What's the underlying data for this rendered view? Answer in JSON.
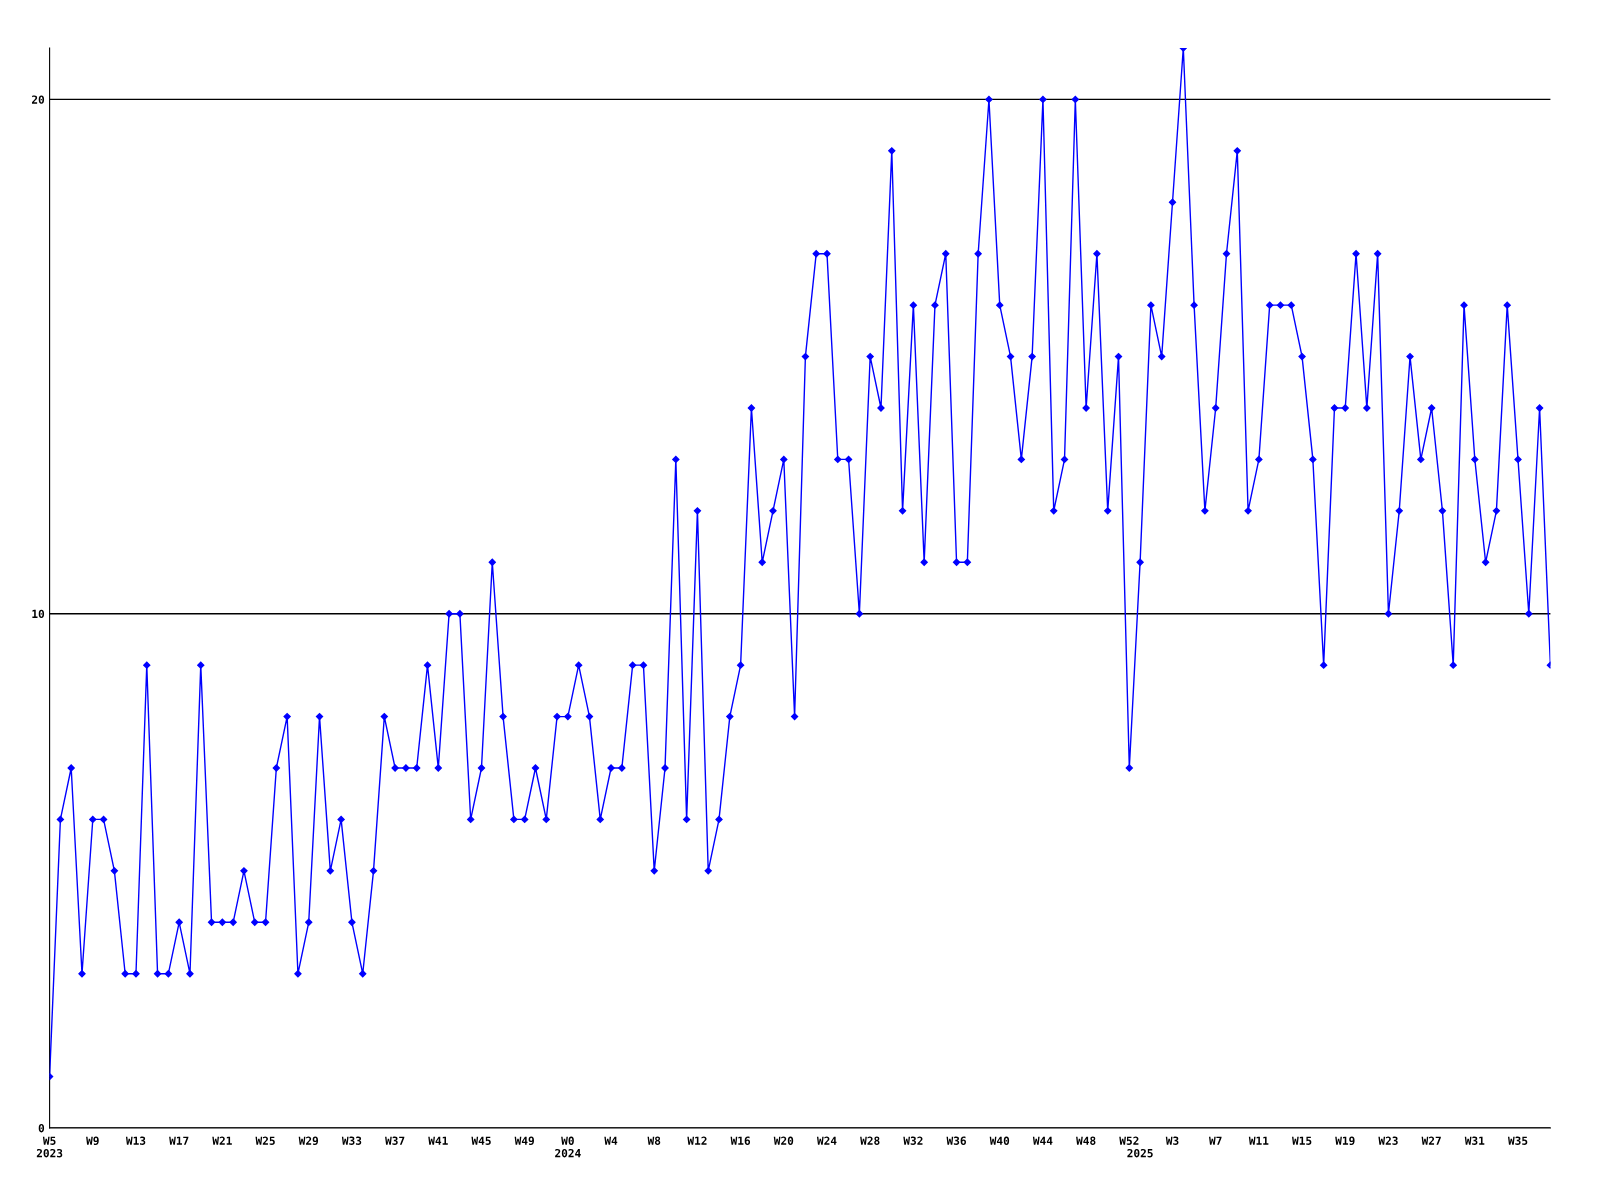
{
  "chart_data": {
    "type": "line",
    "categories": [
      "W5\n2023",
      null,
      null,
      null,
      "W9",
      null,
      null,
      null,
      "W13",
      null,
      null,
      null,
      "W17",
      null,
      null,
      null,
      "W21",
      null,
      null,
      null,
      "W25",
      null,
      null,
      null,
      "W29",
      null,
      null,
      null,
      "W33",
      null,
      null,
      null,
      "W37",
      null,
      null,
      null,
      "W41",
      null,
      null,
      null,
      "W45",
      null,
      null,
      null,
      "W49",
      null,
      null,
      null,
      "W0\n2024",
      null,
      null,
      null,
      "W4",
      null,
      null,
      null,
      "W8",
      null,
      null,
      null,
      "W12",
      null,
      null,
      null,
      "W16",
      null,
      null,
      null,
      "W20",
      null,
      null,
      null,
      "W24",
      null,
      null,
      null,
      "W28",
      null,
      null,
      null,
      "W32",
      null,
      null,
      null,
      "W36",
      null,
      null,
      null,
      "W40",
      null,
      null,
      null,
      "W44",
      null,
      null,
      null,
      "W48",
      null,
      null,
      null,
      "W52",
      "\n2025",
      null,
      null,
      "W3",
      null,
      null,
      null,
      "W7",
      null,
      null,
      null,
      "W11",
      null,
      null,
      null,
      "W15",
      null,
      null,
      null,
      "W19",
      null,
      null,
      null,
      "W23",
      null,
      null,
      null,
      "W27",
      null,
      null,
      null,
      "W31",
      null,
      null,
      null,
      "W35",
      null,
      null,
      null
    ],
    "series": [
      {
        "color": "#0000ff",
        "values": [
          1,
          6,
          7,
          3,
          6,
          6,
          5,
          3,
          3,
          9,
          3,
          3,
          4,
          3,
          9,
          4,
          4,
          4,
          5,
          4,
          4,
          7,
          8,
          3,
          4,
          8,
          5,
          6,
          4,
          3,
          5,
          8,
          7,
          7,
          7,
          9,
          7,
          10,
          10,
          6,
          7,
          11,
          8,
          6,
          6,
          7,
          6,
          8,
          8,
          9,
          8,
          6,
          7,
          7,
          9,
          9,
          5,
          7,
          13,
          6,
          12,
          5,
          6,
          8,
          9,
          14,
          11,
          12,
          13,
          8,
          15,
          17,
          17,
          13,
          13,
          10,
          15,
          14,
          19,
          12,
          16,
          11,
          16,
          17,
          11,
          11,
          17,
          20,
          16,
          15,
          13,
          15,
          20,
          12,
          13,
          20,
          14,
          17,
          12,
          15,
          7,
          11,
          16,
          15,
          18,
          21,
          16,
          12,
          14,
          17,
          19,
          12,
          13,
          16,
          16,
          16,
          15,
          13,
          9,
          14,
          14,
          17,
          14,
          17,
          10,
          12,
          15,
          13,
          14,
          12,
          9,
          16,
          13,
          11,
          12,
          16,
          13,
          10,
          14,
          9
        ]
      }
    ],
    "ylim": [
      0,
      21
    ],
    "yticks": [
      0,
      10,
      20
    ],
    "grid": "y",
    "marker": "diamond",
    "line_style": "solid",
    "legend": false
  }
}
